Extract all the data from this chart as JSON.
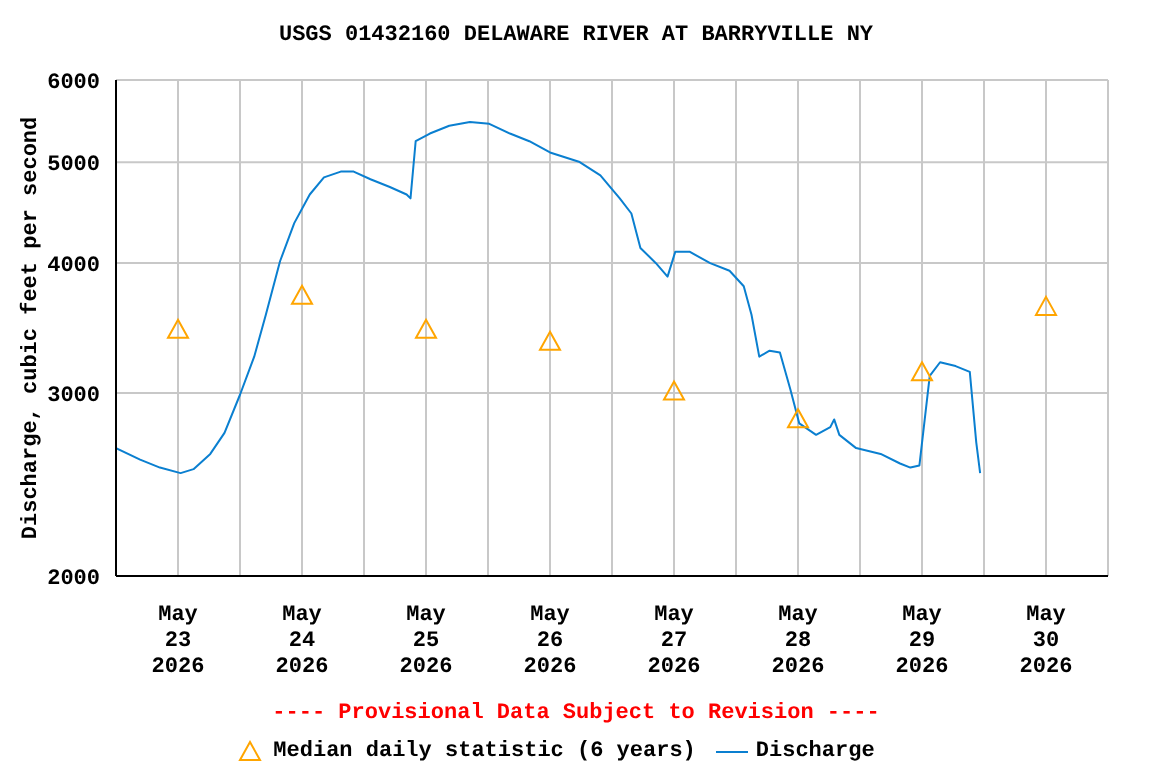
{
  "chart_data": {
    "type": "line",
    "title": "USGS 01432160 DELAWARE RIVER AT BARRYVILLE NY",
    "ylabel": "Discharge, cubic feet per second",
    "log": "y",
    "grid": true,
    "legend": "bottom",
    "ylim": [
      2000,
      6000
    ],
    "yticks": [
      2000,
      3000,
      4000,
      5000,
      6000
    ],
    "xlim": [
      "2026-05-23T00:00",
      "2026-05-31T00:00"
    ],
    "xticks": [
      {
        "value": "2026-05-23T12:00",
        "label": "May\n23\n2026"
      },
      {
        "value": "2026-05-24T12:00",
        "label": "May\n24\n2026"
      },
      {
        "value": "2026-05-25T12:00",
        "label": "May\n25\n2026"
      },
      {
        "value": "2026-05-26T12:00",
        "label": "May\n26\n2026"
      },
      {
        "value": "2026-05-27T12:00",
        "label": "May\n27\n2026"
      },
      {
        "value": "2026-05-28T12:00",
        "label": "May\n28\n2026"
      },
      {
        "value": "2026-05-29T12:00",
        "label": "May\n29\n2026"
      },
      {
        "value": "2026-05-30T12:00",
        "label": "May\n30\n2026"
      },
      {
        "value": "2026-05-24T00:00",
        "label": null
      },
      {
        "value": "2026-05-25T00:00",
        "label": null
      },
      {
        "value": "2026-05-26T00:00",
        "label": null
      },
      {
        "value": "2026-05-27T00:00",
        "label": null
      },
      {
        "value": "2026-05-28T00:00",
        "label": null
      },
      {
        "value": "2026-05-29T00:00",
        "label": null
      },
      {
        "value": "2026-05-30T00:00",
        "label": null
      }
    ],
    "annotations": [
      "---- Provisional Data Subject to Revision ----"
    ],
    "series": [
      {
        "name": "Median daily statistic (6 years)",
        "type": "scatter",
        "marker": "triangle",
        "color": "#ffa500",
        "x": [
          "2026-05-23T12:00",
          "2026-05-24T12:00",
          "2026-05-25T12:00",
          "2026-05-26T12:00",
          "2026-05-27T12:00",
          "2026-05-28T12:00",
          "2026-05-29T12:00",
          "2026-05-30T12:00"
        ],
        "values": [
          3450,
          3720,
          3450,
          3360,
          3010,
          2830,
          3140,
          3630
        ]
      },
      {
        "name": "Discharge",
        "marker": "none",
        "color": "#0a7fd0",
        "x": [
          "2026-05-23T00:00",
          "2026-05-23T04:40",
          "2026-05-23T08:30",
          "2026-05-23T12:30",
          "2026-05-23T15:00",
          "2026-05-23T18:15",
          "2026-05-23T21:00",
          "2026-05-24T00:00",
          "2026-05-24T02:45",
          "2026-05-24T05:00",
          "2026-05-24T07:45",
          "2026-05-24T10:30",
          "2026-05-24T13:30",
          "2026-05-24T16:15",
          "2026-05-24T19:30",
          "2026-05-24T22:00",
          "2026-05-25T01:15",
          "2026-05-25T05:00",
          "2026-05-25T08:15",
          "2026-05-25T09:00",
          "2026-05-25T10:00",
          "2026-05-25T12:45",
          "2026-05-25T16:30",
          "2026-05-25T20:30",
          "2026-05-26T00:15",
          "2026-05-26T04:15",
          "2026-05-26T08:00",
          "2026-05-26T12:00",
          "2026-05-26T17:45",
          "2026-05-26T21:45",
          "2026-05-27T01:30",
          "2026-05-27T03:45",
          "2026-05-27T05:30",
          "2026-05-27T08:30",
          "2026-05-27T10:45",
          "2026-05-27T12:15",
          "2026-05-27T15:00",
          "2026-05-27T19:00",
          "2026-05-27T22:45",
          "2026-05-28T01:30",
          "2026-05-28T03:00",
          "2026-05-28T04:30",
          "2026-05-28T06:30",
          "2026-05-28T08:30",
          "2026-05-28T10:30",
          "2026-05-28T12:15",
          "2026-05-28T15:30",
          "2026-05-28T18:15",
          "2026-05-28T19:00",
          "2026-05-28T20:00",
          "2026-05-28T23:15",
          "2026-05-29T04:00",
          "2026-05-29T07:45",
          "2026-05-29T09:45",
          "2026-05-29T11:30",
          "2026-05-29T13:30",
          "2026-05-29T15:30",
          "2026-05-29T18:30",
          "2026-05-29T21:15",
          "2026-05-29T22:30",
          "2026-05-29T23:15"
        ],
        "values": [
          2655,
          2588,
          2543,
          2512,
          2534,
          2621,
          2746,
          2988,
          3251,
          3567,
          4016,
          4370,
          4656,
          4836,
          4898,
          4898,
          4816,
          4734,
          4656,
          4616,
          5239,
          5329,
          5422,
          5468,
          5445,
          5329,
          5239,
          5110,
          5003,
          4858,
          4616,
          4464,
          4136,
          3999,
          3882,
          4102,
          4102,
          3999,
          3932,
          3800,
          3567,
          3251,
          3294,
          3281,
          3026,
          2804,
          2734,
          2781,
          2829,
          2734,
          2655,
          2621,
          2566,
          2543,
          2555,
          3116,
          3211,
          3184,
          3143,
          2689,
          2512
        ]
      }
    ]
  }
}
